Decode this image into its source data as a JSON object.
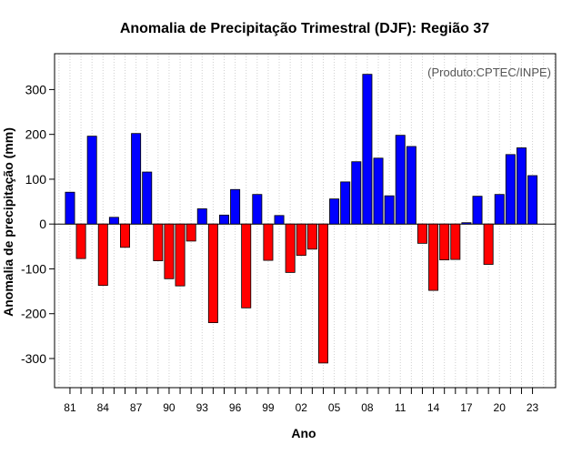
{
  "chart_data": {
    "type": "bar",
    "title": "Anomalia de Precipitação Trimestral (DJF): Região 37",
    "xlabel": "Ano",
    "ylabel": "Anomalia de precipitação (mm)",
    "annotation": "(Produto:CPTEC/INPE)",
    "ylim": [
      -365,
      380
    ],
    "xlim": [
      1979.6,
      2025.1
    ],
    "yticks": [
      -300,
      -200,
      -100,
      0,
      100,
      200,
      300
    ],
    "xtick_years": [
      1981,
      1984,
      1987,
      1990,
      1993,
      1996,
      1999,
      2002,
      2005,
      2008,
      2011,
      2014,
      2017,
      2020,
      2023
    ],
    "xtick_labels": [
      "81",
      "84",
      "87",
      "90",
      "93",
      "96",
      "99",
      "02",
      "05",
      "08",
      "11",
      "14",
      "17",
      "20",
      "23"
    ],
    "grid": "vertical-dotted",
    "positive_color": "#0000ff",
    "negative_color": "#ff0000",
    "categories": [
      1981,
      1982,
      1983,
      1984,
      1985,
      1986,
      1987,
      1988,
      1989,
      1990,
      1991,
      1992,
      1993,
      1994,
      1995,
      1996,
      1997,
      1998,
      1999,
      2000,
      2001,
      2002,
      2003,
      2004,
      2005,
      2006,
      2007,
      2008,
      2009,
      2010,
      2011,
      2012,
      2013,
      2014,
      2015,
      2016,
      2017,
      2018,
      2019,
      2020,
      2021,
      2022,
      2023
    ],
    "values": [
      71,
      -77,
      196,
      -137,
      15,
      -52,
      202,
      116,
      -82,
      -122,
      -138,
      -38,
      34,
      -220,
      20,
      77,
      -187,
      66,
      -81,
      19,
      -108,
      -70,
      -56,
      -310,
      56,
      94,
      139,
      334,
      147,
      63,
      198,
      173,
      -43,
      -148,
      -80,
      -79,
      3,
      62,
      -90,
      66,
      155,
      170,
      108
    ]
  }
}
